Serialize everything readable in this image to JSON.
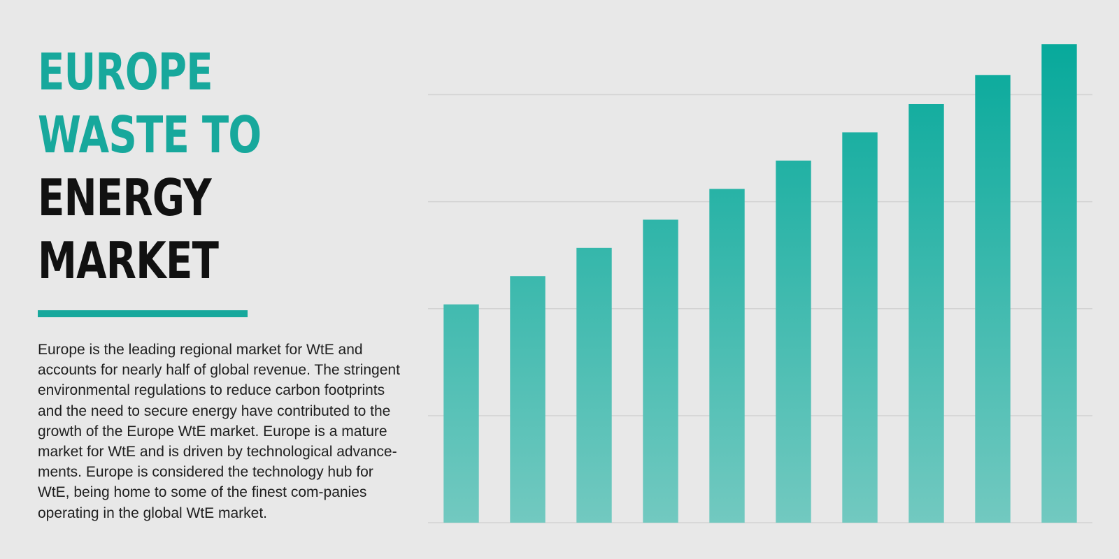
{
  "heading": {
    "lines": [
      "EUROPE",
      "WASTE TO",
      "ENERGY",
      "MARKET"
    ]
  },
  "description": "Europe is the leading regional market for WtE and accounts for nearly half of global revenue. The stringent environmental regulations to reduce carbon footprints and the need to secure energy have contributed to the growth of the Europe WtE market. Europe is a mature market for WtE and is driven by technological advance-ments. Europe is considered the technology hub for WtE, being home to some of the finest com-panies operating in the global WtE market.",
  "colors": {
    "accent": "#17a89c",
    "bar_top": "#07a99b",
    "bar_bottom": "#72c9c0",
    "gridline": "#d3d3d3"
  },
  "chart_data": {
    "type": "bar",
    "title": "",
    "xlabel": "",
    "ylabel": "",
    "values": [
      51,
      57.6,
      64.2,
      70.8,
      78,
      84.6,
      91.2,
      97.8,
      104.6,
      111.8
    ],
    "ylim": [
      0,
      112
    ],
    "gridlines": [
      25,
      50,
      75,
      100
    ],
    "grid": true,
    "legend": "none",
    "axis_labels_shown": false
  }
}
